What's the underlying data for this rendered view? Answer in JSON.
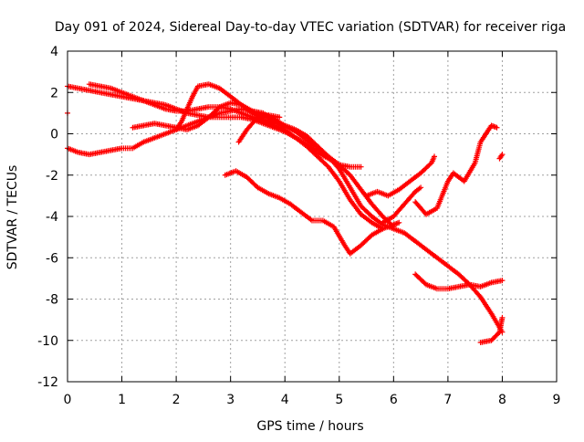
{
  "chart_data": {
    "type": "scatter",
    "title": "Day 091 of 2024, Sidereal Day-to-day VTEC variation (SDTVAR) for receiver riga",
    "xlabel": "GPS time / hours",
    "ylabel": "SDTVAR / TECUs",
    "xlim": [
      0,
      9
    ],
    "ylim": [
      -12,
      4
    ],
    "xticks": [
      "0",
      "1",
      "2",
      "3",
      "4",
      "5",
      "6",
      "7",
      "8",
      "9"
    ],
    "yticks": [
      "-12",
      "-10",
      "-8",
      "-6",
      "-4",
      "-2",
      "0",
      "2",
      "4"
    ],
    "grid": true,
    "marker": "+",
    "series": [
      {
        "points": [
          [
            0.0,
            -0.7
          ],
          [
            0.2,
            -0.9
          ],
          [
            0.4,
            -1.0
          ],
          [
            0.6,
            -0.9
          ],
          [
            0.8,
            -0.8
          ],
          [
            1.0,
            -0.7
          ],
          [
            1.2,
            -0.7
          ],
          [
            1.4,
            -0.4
          ],
          [
            1.6,
            -0.2
          ],
          [
            1.8,
            0.0
          ],
          [
            2.0,
            0.2
          ],
          [
            2.2,
            0.4
          ],
          [
            2.4,
            0.6
          ],
          [
            2.6,
            0.8
          ],
          [
            2.8,
            1.0
          ],
          [
            3.0,
            1.1
          ],
          [
            3.2,
            1.2
          ],
          [
            3.4,
            1.1
          ],
          [
            3.6,
            1.0
          ],
          [
            3.8,
            0.7
          ],
          [
            4.0,
            0.4
          ],
          [
            4.2,
            0.1
          ],
          [
            4.4,
            -0.3
          ],
          [
            4.6,
            -0.7
          ],
          [
            4.8,
            -1.1
          ],
          [
            5.0,
            -1.5
          ],
          [
            5.2,
            -2.0
          ],
          [
            5.4,
            -2.7
          ],
          [
            5.6,
            -3.4
          ],
          [
            5.8,
            -4.0
          ],
          [
            6.0,
            -4.5
          ]
        ]
      },
      {
        "points": [
          [
            0.0,
            2.3
          ],
          [
            0.2,
            2.2
          ],
          [
            0.4,
            2.1
          ],
          [
            0.6,
            2.0
          ],
          [
            0.8,
            1.9
          ],
          [
            1.0,
            1.8
          ],
          [
            1.2,
            1.7
          ],
          [
            1.4,
            1.6
          ],
          [
            1.6,
            1.5
          ],
          [
            1.8,
            1.4
          ],
          [
            2.0,
            1.2
          ],
          [
            2.2,
            1.0
          ],
          [
            2.4,
            0.9
          ],
          [
            2.6,
            0.8
          ],
          [
            2.8,
            0.8
          ],
          [
            3.0,
            0.8
          ],
          [
            3.2,
            0.8
          ],
          [
            3.4,
            0.7
          ],
          [
            3.6,
            0.5
          ],
          [
            3.8,
            0.3
          ],
          [
            4.0,
            0.1
          ],
          [
            4.2,
            -0.2
          ],
          [
            4.4,
            -0.5
          ],
          [
            4.6,
            -0.9
          ],
          [
            4.8,
            -1.2
          ],
          [
            5.0,
            -1.5
          ],
          [
            5.2,
            -1.6
          ],
          [
            5.4,
            -1.6
          ]
        ]
      },
      {
        "points": [
          [
            0.4,
            2.4
          ],
          [
            0.6,
            2.3
          ],
          [
            0.8,
            2.2
          ],
          [
            1.0,
            2.0
          ],
          [
            1.2,
            1.8
          ],
          [
            1.4,
            1.6
          ],
          [
            1.6,
            1.4
          ],
          [
            1.8,
            1.2
          ],
          [
            2.0,
            1.1
          ],
          [
            2.2,
            1.1
          ],
          [
            2.4,
            1.2
          ],
          [
            2.6,
            1.3
          ],
          [
            2.8,
            1.3
          ],
          [
            3.0,
            1.2
          ],
          [
            3.2,
            1.0
          ],
          [
            3.4,
            0.8
          ],
          [
            3.6,
            0.6
          ],
          [
            3.8,
            0.4
          ],
          [
            4.0,
            0.2
          ],
          [
            4.2,
            -0.2
          ],
          [
            4.4,
            -0.6
          ],
          [
            4.6,
            -1.1
          ],
          [
            4.8,
            -1.6
          ],
          [
            5.0,
            -2.3
          ],
          [
            5.2,
            -3.2
          ],
          [
            5.4,
            -3.9
          ],
          [
            5.6,
            -4.3
          ],
          [
            5.8,
            -4.6
          ]
        ]
      },
      {
        "points": [
          [
            1.2,
            0.3
          ],
          [
            1.4,
            0.4
          ],
          [
            1.6,
            0.5
          ],
          [
            1.8,
            0.4
          ],
          [
            2.0,
            0.3
          ],
          [
            2.2,
            0.2
          ],
          [
            2.4,
            0.4
          ],
          [
            2.6,
            0.8
          ],
          [
            2.8,
            1.3
          ],
          [
            3.0,
            1.5
          ],
          [
            3.2,
            1.4
          ],
          [
            3.4,
            1.0
          ],
          [
            3.6,
            0.7
          ],
          [
            3.8,
            0.5
          ],
          [
            4.0,
            0.4
          ],
          [
            4.2,
            0.2
          ],
          [
            4.4,
            -0.1
          ],
          [
            4.6,
            -0.6
          ],
          [
            4.8,
            -1.1
          ],
          [
            5.0,
            -1.7
          ],
          [
            5.2,
            -2.6
          ],
          [
            5.4,
            -3.5
          ],
          [
            5.6,
            -4.0
          ],
          [
            5.8,
            -4.4
          ],
          [
            6.0,
            -4.6
          ],
          [
            6.2,
            -4.8
          ],
          [
            6.4,
            -5.2
          ],
          [
            6.6,
            -5.6
          ],
          [
            6.8,
            -6.0
          ],
          [
            7.0,
            -6.4
          ],
          [
            7.2,
            -6.8
          ],
          [
            7.4,
            -7.3
          ],
          [
            7.6,
            -7.9
          ],
          [
            7.8,
            -8.7
          ],
          [
            8.0,
            -9.6
          ]
        ]
      },
      {
        "points": [
          [
            2.0,
            0.2
          ],
          [
            2.1,
            0.6
          ],
          [
            2.2,
            1.2
          ],
          [
            2.3,
            1.8
          ],
          [
            2.4,
            2.3
          ],
          [
            2.6,
            2.4
          ],
          [
            2.8,
            2.2
          ],
          [
            3.0,
            1.8
          ],
          [
            3.2,
            1.4
          ],
          [
            3.4,
            1.1
          ],
          [
            3.6,
            0.9
          ],
          [
            3.8,
            0.6
          ],
          [
            4.0,
            0.3
          ]
        ]
      },
      {
        "points": [
          [
            2.9,
            -2.0
          ],
          [
            3.1,
            -1.8
          ],
          [
            3.3,
            -2.1
          ],
          [
            3.5,
            -2.6
          ],
          [
            3.7,
            -2.9
          ],
          [
            3.9,
            -3.1
          ],
          [
            4.1,
            -3.4
          ],
          [
            4.3,
            -3.8
          ],
          [
            4.5,
            -4.2
          ],
          [
            4.7,
            -4.2
          ],
          [
            4.9,
            -4.5
          ],
          [
            5.1,
            -5.4
          ],
          [
            5.2,
            -5.8
          ],
          [
            5.4,
            -5.4
          ],
          [
            5.6,
            -4.9
          ],
          [
            5.8,
            -4.6
          ],
          [
            6.0,
            -4.4
          ],
          [
            6.1,
            -4.3
          ]
        ]
      },
      {
        "points": [
          [
            3.15,
            -0.4
          ],
          [
            3.3,
            0.2
          ],
          [
            3.5,
            0.8
          ],
          [
            3.7,
            0.9
          ],
          [
            3.9,
            0.8
          ]
        ]
      },
      {
        "points": [
          [
            5.5,
            -3.0
          ],
          [
            5.7,
            -2.8
          ],
          [
            5.9,
            -3.0
          ],
          [
            6.1,
            -2.7
          ],
          [
            6.3,
            -2.3
          ],
          [
            6.5,
            -1.9
          ],
          [
            6.7,
            -1.4
          ],
          [
            6.75,
            -1.1
          ]
        ]
      },
      {
        "points": [
          [
            5.8,
            -4.3
          ],
          [
            6.0,
            -4.0
          ],
          [
            6.2,
            -3.4
          ],
          [
            6.4,
            -2.8
          ],
          [
            6.5,
            -2.6
          ]
        ]
      },
      {
        "points": [
          [
            6.4,
            -3.3
          ],
          [
            6.6,
            -3.9
          ],
          [
            6.8,
            -3.6
          ],
          [
            7.0,
            -2.3
          ],
          [
            7.1,
            -1.9
          ],
          [
            7.3,
            -2.3
          ],
          [
            7.5,
            -1.4
          ],
          [
            7.6,
            -0.4
          ],
          [
            7.8,
            0.4
          ],
          [
            7.9,
            0.3
          ]
        ]
      },
      {
        "points": [
          [
            6.4,
            -6.8
          ],
          [
            6.6,
            -7.3
          ],
          [
            6.8,
            -7.5
          ],
          [
            7.0,
            -7.5
          ],
          [
            7.2,
            -7.4
          ],
          [
            7.4,
            -7.3
          ],
          [
            7.6,
            -7.4
          ],
          [
            7.8,
            -7.2
          ],
          [
            8.0,
            -7.1
          ]
        ]
      },
      {
        "points": [
          [
            7.6,
            -10.1
          ],
          [
            7.8,
            -10.0
          ],
          [
            7.95,
            -9.6
          ],
          [
            8.0,
            -8.9
          ]
        ]
      },
      {
        "points": [
          [
            7.95,
            -1.2
          ],
          [
            8.0,
            -1.0
          ]
        ]
      },
      {
        "points": [
          [
            0.0,
            1.0
          ]
        ]
      }
    ]
  }
}
